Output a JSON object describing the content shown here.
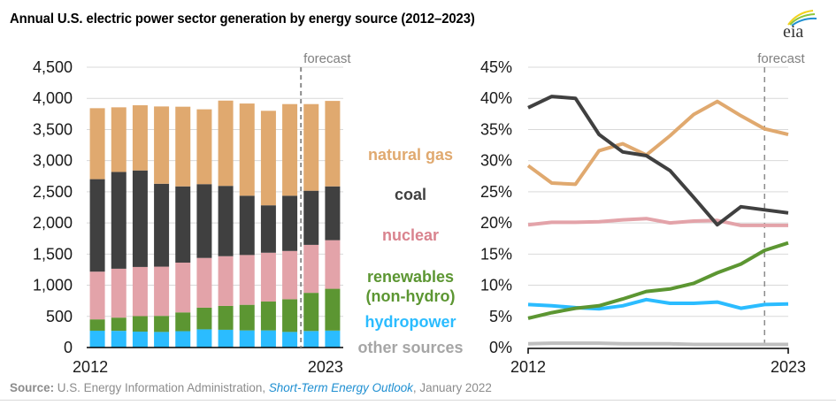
{
  "title": "Annual U.S. electric power sector generation by energy source (2012–2023)",
  "logo": {
    "text": "eia",
    "icon": "eia-logo-icon"
  },
  "source": {
    "label": "Source:",
    "text": " U.S. Energy Information Administration, ",
    "publication": "Short-Term Energy Outlook",
    "date": ", January 2022"
  },
  "colors": {
    "natural_gas": "#e0a96f",
    "coal": "#404040",
    "nuclear": "#e3a3a9",
    "renewables": "#5c9632",
    "hydropower": "#2bbcff",
    "other": "#bfbfbf",
    "forecast_line": "#8c8c8c",
    "grid": "#d9d9d9"
  },
  "legend": [
    {
      "key": "natural_gas",
      "label": "natural gas",
      "color": "#e0a96f"
    },
    {
      "key": "coal",
      "label": "coal",
      "color": "#404040"
    },
    {
      "key": "nuclear",
      "label": "nuclear",
      "color": "#d9838e"
    },
    {
      "key": "renewables",
      "label": "renewables",
      "label2": "(non-hydro)",
      "color": "#5c9632"
    },
    {
      "key": "hydropower",
      "label": "hydropower",
      "color": "#2bbcff"
    },
    {
      "key": "other",
      "label": "other sources",
      "color": "#a6a6a6"
    }
  ],
  "chart_data": [
    {
      "type": "bar",
      "stacked": true,
      "title": "Annual U.S. electric power sector generation by energy source (2012–2023)",
      "xlabel": "",
      "ylabel": "",
      "categories": [
        "2012",
        "2013",
        "2014",
        "2015",
        "2016",
        "2017",
        "2018",
        "2019",
        "2020",
        "2021",
        "2022",
        "2023"
      ],
      "x_tick_labels": [
        "2012",
        "2023"
      ],
      "ylim": [
        0,
        4500
      ],
      "y_ticks": [
        0,
        500,
        1000,
        1500,
        2000,
        2500,
        3000,
        3500,
        4000,
        4500
      ],
      "y_tick_labels": [
        "0",
        "500",
        "1,000",
        "1,500",
        "2,000",
        "2,500",
        "3,000",
        "3,500",
        "4,000",
        "4,500"
      ],
      "grid": true,
      "forecast_start_after": "2021",
      "forecast_label": "forecast",
      "series": [
        {
          "name": "hydropower",
          "values": [
            270,
            268,
            255,
            250,
            262,
            292,
            285,
            275,
            275,
            250,
            265,
            272
          ]
        },
        {
          "name": "renewables (non-hydro)",
          "values": [
            182,
            212,
            249,
            258,
            302,
            348,
            383,
            411,
            463,
            525,
            613,
            671
          ]
        },
        {
          "name": "nuclear",
          "values": [
            766,
            785,
            789,
            790,
            799,
            798,
            798,
            799,
            784,
            775,
            770,
            780
          ]
        },
        {
          "name": "coal",
          "values": [
            1485,
            1554,
            1550,
            1331,
            1224,
            1185,
            1129,
            952,
            761,
            887,
            869,
            864
          ]
        },
        {
          "name": "natural gas",
          "values": [
            1139,
            1037,
            1046,
            1241,
            1279,
            1201,
            1369,
            1480,
            1517,
            1471,
            1391,
            1372
          ]
        }
      ]
    },
    {
      "type": "line",
      "title": "",
      "xlabel": "",
      "ylabel": "",
      "x": [
        "2012",
        "2013",
        "2014",
        "2015",
        "2016",
        "2017",
        "2018",
        "2019",
        "2020",
        "2021",
        "2022",
        "2023"
      ],
      "x_tick_labels": [
        "2012",
        "2023"
      ],
      "ylim": [
        0,
        45
      ],
      "y_ticks": [
        0,
        5,
        10,
        15,
        20,
        25,
        30,
        35,
        40,
        45
      ],
      "y_tick_labels": [
        "0%",
        "5%",
        "10%",
        "15%",
        "20%",
        "25%",
        "30%",
        "35%",
        "40%",
        "45%"
      ],
      "grid": true,
      "forecast_start_after": "2021",
      "forecast_label": "forecast",
      "series": [
        {
          "name": "natural gas",
          "values": [
            29.2,
            26.4,
            26.2,
            31.6,
            32.7,
            30.9,
            34.0,
            37.4,
            39.5,
            37.2,
            35.1,
            34.2
          ]
        },
        {
          "name": "coal",
          "values": [
            38.5,
            40.3,
            40.0,
            34.2,
            31.4,
            30.8,
            28.4,
            24.1,
            19.7,
            22.6,
            22.1,
            21.6
          ]
        },
        {
          "name": "nuclear",
          "values": [
            19.7,
            20.1,
            20.1,
            20.2,
            20.5,
            20.7,
            20.0,
            20.3,
            20.4,
            19.6,
            19.6,
            19.6
          ]
        },
        {
          "name": "renewables (non-hydro)",
          "values": [
            4.7,
            5.6,
            6.3,
            6.7,
            7.8,
            9.0,
            9.4,
            10.3,
            12.0,
            13.4,
            15.6,
            16.8
          ]
        },
        {
          "name": "hydropower",
          "values": [
            6.9,
            6.7,
            6.4,
            6.2,
            6.7,
            7.7,
            7.1,
            7.1,
            7.3,
            6.3,
            6.9,
            7.0
          ]
        },
        {
          "name": "other sources",
          "values": [
            0.6,
            0.7,
            0.7,
            0.7,
            0.6,
            0.6,
            0.6,
            0.5,
            0.5,
            0.5,
            0.5,
            0.5
          ]
        }
      ]
    }
  ]
}
